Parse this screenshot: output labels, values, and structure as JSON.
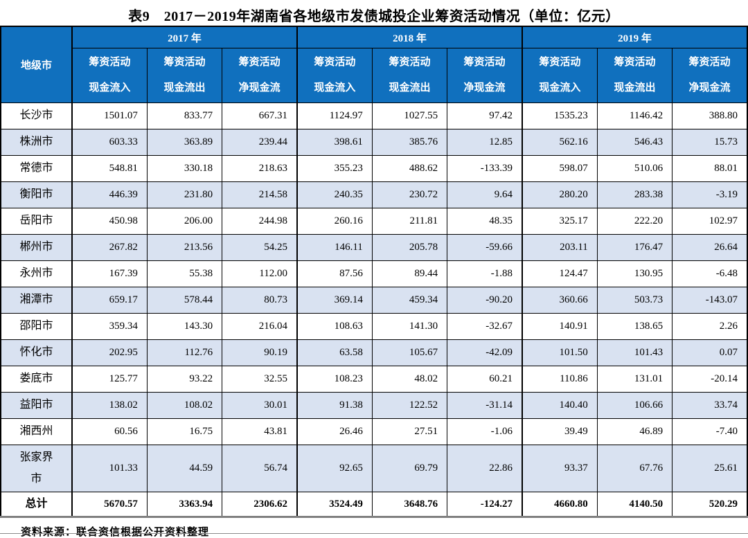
{
  "title": "表9　2017－2019年湖南省各地级市发债城投企业筹资活动情况（单位：亿元）",
  "table": {
    "corner_header": "地级市",
    "year_groups": [
      {
        "label": "2017 年",
        "columns": [
          "筹资活动\n现金流入",
          "筹资活动\n现金流出",
          "筹资活动\n净现金流"
        ]
      },
      {
        "label": "2018 年",
        "columns": [
          "筹资活动\n现金流入",
          "筹资活动\n现金流出",
          "筹资活动\n净现金流"
        ]
      },
      {
        "label": "2019 年",
        "columns": [
          "筹资活动\n现金流入",
          "筹资活动\n现金流出",
          "筹资活动\n净现金流"
        ]
      }
    ],
    "rows": [
      {
        "city": "长沙市",
        "values": [
          "1501.07",
          "833.77",
          "667.31",
          "1124.97",
          "1027.55",
          "97.42",
          "1535.23",
          "1146.42",
          "388.80"
        ]
      },
      {
        "city": "株洲市",
        "values": [
          "603.33",
          "363.89",
          "239.44",
          "398.61",
          "385.76",
          "12.85",
          "562.16",
          "546.43",
          "15.73"
        ]
      },
      {
        "city": "常德市",
        "values": [
          "548.81",
          "330.18",
          "218.63",
          "355.23",
          "488.62",
          "-133.39",
          "598.07",
          "510.06",
          "88.01"
        ]
      },
      {
        "city": "衡阳市",
        "values": [
          "446.39",
          "231.80",
          "214.58",
          "240.35",
          "230.72",
          "9.64",
          "280.20",
          "283.38",
          "-3.19"
        ]
      },
      {
        "city": "岳阳市",
        "values": [
          "450.98",
          "206.00",
          "244.98",
          "260.16",
          "211.81",
          "48.35",
          "325.17",
          "222.20",
          "102.97"
        ]
      },
      {
        "city": "郴州市",
        "values": [
          "267.82",
          "213.56",
          "54.25",
          "146.11",
          "205.78",
          "-59.66",
          "203.11",
          "176.47",
          "26.64"
        ]
      },
      {
        "city": "永州市",
        "values": [
          "167.39",
          "55.38",
          "112.00",
          "87.56",
          "89.44",
          "-1.88",
          "124.47",
          "130.95",
          "-6.48"
        ]
      },
      {
        "city": "湘潭市",
        "values": [
          "659.17",
          "578.44",
          "80.73",
          "369.14",
          "459.34",
          "-90.20",
          "360.66",
          "503.73",
          "-143.07"
        ]
      },
      {
        "city": "邵阳市",
        "values": [
          "359.34",
          "143.30",
          "216.04",
          "108.63",
          "141.30",
          "-32.67",
          "140.91",
          "138.65",
          "2.26"
        ]
      },
      {
        "city": "怀化市",
        "values": [
          "202.95",
          "112.76",
          "90.19",
          "63.58",
          "105.67",
          "-42.09",
          "101.50",
          "101.43",
          "0.07"
        ]
      },
      {
        "city": "娄底市",
        "values": [
          "125.77",
          "93.22",
          "32.55",
          "108.23",
          "48.02",
          "60.21",
          "110.86",
          "131.01",
          "-20.14"
        ]
      },
      {
        "city": "益阳市",
        "values": [
          "138.02",
          "108.02",
          "30.01",
          "91.38",
          "122.52",
          "-31.14",
          "140.40",
          "106.66",
          "33.74"
        ]
      },
      {
        "city": "湘西州",
        "values": [
          "60.56",
          "16.75",
          "43.81",
          "26.46",
          "27.51",
          "-1.06",
          "39.49",
          "46.89",
          "-7.40"
        ]
      },
      {
        "city": "张家界\n市",
        "values": [
          "101.33",
          "44.59",
          "56.74",
          "92.65",
          "69.79",
          "22.86",
          "93.37",
          "67.76",
          "25.61"
        ]
      },
      {
        "city": "总计",
        "is_total": true,
        "values": [
          "5670.57",
          "3363.94",
          "2306.62",
          "3524.49",
          "3648.76",
          "-124.27",
          "4660.80",
          "4140.50",
          "520.29"
        ]
      }
    ]
  },
  "footer": {
    "source_note": "资料来源：联合资信根据公开资料整理"
  },
  "colors": {
    "header_bg": "#1070BE",
    "shaded_row_bg": "#D9E2F1",
    "header_text": "#FFFFFF",
    "table_bottom_rule": "#808080"
  }
}
